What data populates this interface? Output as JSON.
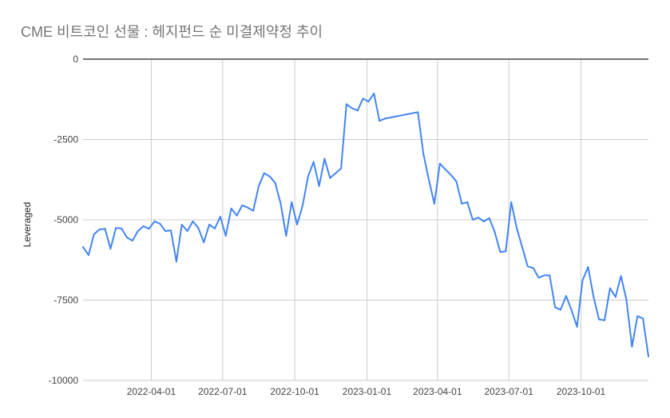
{
  "chart_data": {
    "type": "line",
    "title": "CME 비트코인 선물 : 헤지펀드 순 미결제약정 추이",
    "xlabel": "",
    "ylabel": "Leveraged",
    "ylim": [
      -10000,
      0
    ],
    "y_ticks": [
      0,
      -2500,
      -5000,
      -7500,
      -10000
    ],
    "y_tick_labels": [
      "0",
      "-2500",
      "-5000",
      "-7500",
      "-10000"
    ],
    "x_ticks": [
      "2022-04-01",
      "2022-07-01",
      "2022-10-01",
      "2023-01-01",
      "2023-04-01",
      "2023-07-01",
      "2023-10-01"
    ],
    "xlim": [
      "2022-01-04",
      "2023-12-26"
    ],
    "grid": true,
    "line_color": "#4285f4",
    "series": [
      {
        "x": [
          "2022-01-04",
          "2022-01-11",
          "2022-01-18",
          "2022-01-25",
          "2022-02-01",
          "2022-02-08",
          "2022-02-15",
          "2022-02-22",
          "2022-03-01",
          "2022-03-08",
          "2022-03-15",
          "2022-03-22",
          "2022-03-29",
          "2022-04-05",
          "2022-04-12",
          "2022-04-19",
          "2022-04-26",
          "2022-05-03",
          "2022-05-10",
          "2022-05-17",
          "2022-05-24",
          "2022-05-31",
          "2022-06-07",
          "2022-06-14",
          "2022-06-21",
          "2022-06-28",
          "2022-07-05",
          "2022-07-12",
          "2022-07-19",
          "2022-07-26",
          "2022-08-02",
          "2022-08-09",
          "2022-08-16",
          "2022-08-23",
          "2022-08-30",
          "2022-09-06",
          "2022-09-13",
          "2022-09-20",
          "2022-09-27",
          "2022-10-04",
          "2022-10-11",
          "2022-10-18",
          "2022-10-25",
          "2022-11-01",
          "2022-11-08",
          "2022-11-15",
          "2022-11-22",
          "2022-11-29",
          "2022-12-06",
          "2022-12-13",
          "2022-12-20",
          "2022-12-27",
          "2023-01-03",
          "2023-01-10",
          "2023-01-17",
          "2023-01-24",
          "2023-03-07",
          "2023-03-14",
          "2023-03-21",
          "2023-03-28",
          "2023-04-04",
          "2023-04-11",
          "2023-04-18",
          "2023-04-25",
          "2023-05-02",
          "2023-05-09",
          "2023-05-16",
          "2023-05-23",
          "2023-05-30",
          "2023-06-06",
          "2023-06-13",
          "2023-06-20",
          "2023-06-27",
          "2023-07-04",
          "2023-07-11",
          "2023-07-18",
          "2023-07-25",
          "2023-08-01",
          "2023-08-08",
          "2023-08-15",
          "2023-08-22",
          "2023-08-29",
          "2023-09-05",
          "2023-09-12",
          "2023-09-19",
          "2023-09-26",
          "2023-10-03",
          "2023-10-10",
          "2023-10-17",
          "2023-10-24",
          "2023-10-31",
          "2023-11-07",
          "2023-11-14",
          "2023-11-21",
          "2023-11-28",
          "2023-12-05",
          "2023-12-12",
          "2023-12-19",
          "2023-12-26"
        ],
        "y": [
          -5850,
          -6100,
          -5450,
          -5300,
          -5280,
          -5900,
          -5250,
          -5270,
          -5550,
          -5650,
          -5350,
          -5200,
          -5280,
          -5050,
          -5120,
          -5350,
          -5330,
          -6300,
          -5150,
          -5350,
          -5050,
          -5250,
          -5700,
          -5150,
          -5270,
          -4900,
          -5500,
          -4650,
          -4870,
          -4550,
          -4620,
          -4720,
          -3950,
          -3550,
          -3650,
          -3850,
          -4500,
          -5500,
          -4450,
          -5150,
          -4550,
          -3650,
          -3200,
          -3950,
          -3100,
          -3700,
          -3550,
          -3400,
          -1400,
          -1530,
          -1600,
          -1230,
          -1320,
          -1070,
          -1920,
          -1850,
          -1650,
          -2950,
          -3750,
          -4500,
          -3250,
          -3430,
          -3600,
          -3800,
          -4500,
          -4450,
          -5000,
          -4930,
          -5050,
          -4950,
          -5380,
          -6000,
          -5980,
          -4450,
          -5250,
          -5850,
          -6450,
          -6500,
          -6800,
          -6730,
          -6730,
          -7720,
          -7800,
          -7370,
          -7820,
          -8330,
          -6880,
          -6470,
          -7400,
          -8100,
          -8130,
          -7130,
          -7400,
          -6750,
          -7500,
          -8950,
          -8000,
          -8070,
          -9250
        ]
      }
    ]
  }
}
